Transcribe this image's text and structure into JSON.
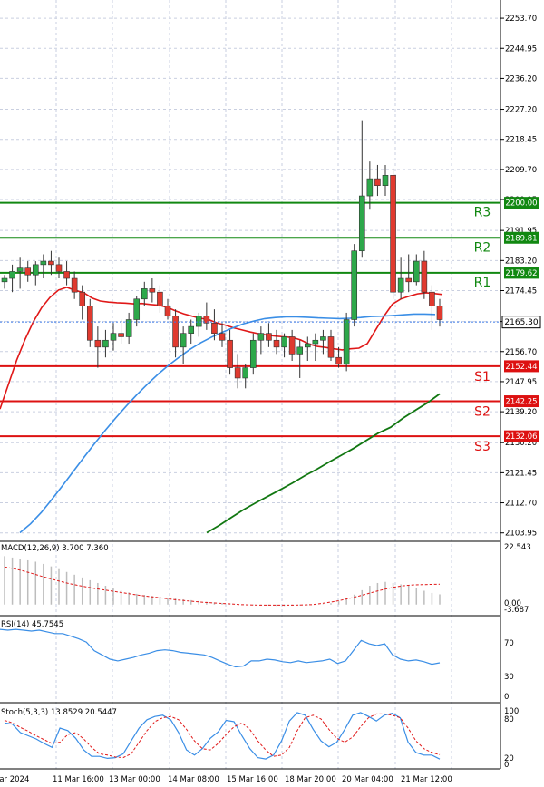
{
  "chart_data": [
    {
      "type": "candlestick",
      "ylim": [
        2101.5,
        2259.0
      ],
      "price_axis_ticks": [
        "2253.70",
        "2244.95",
        "2236.20",
        "2227.20",
        "2218.45",
        "2209.70",
        "2200.95",
        "2191.95",
        "2183.20",
        "2174.45",
        "2165.45",
        "2156.70",
        "2147.95",
        "2139.20",
        "2130.20",
        "2121.45",
        "2112.70",
        "2103.95"
      ],
      "x_labels": [
        "Mar 2024",
        "11 Mar 16:00",
        "13 Mar 00:00",
        "14 Mar 08:00",
        "15 Mar 16:00",
        "18 Mar 20:00",
        "20 Mar 04:00",
        "21 Mar 12:00"
      ],
      "current_price": "2165.30",
      "levels": [
        {
          "name": "R3",
          "value": 2200.0,
          "label": "2200.00",
          "color": "#118811"
        },
        {
          "name": "R2",
          "value": 2189.81,
          "label": "2189.81",
          "color": "#118811"
        },
        {
          "name": "R1",
          "value": 2179.62,
          "label": "2179.62",
          "color": "#118811"
        },
        {
          "name": "S1",
          "value": 2152.44,
          "label": "2152.44",
          "color": "#dd1111"
        },
        {
          "name": "S2",
          "value": 2142.25,
          "label": "2142.25",
          "color": "#dd1111"
        },
        {
          "name": "S3",
          "value": 2132.06,
          "label": "2132.06",
          "color": "#dd1111"
        }
      ],
      "candles": [
        [
          2177,
          2179,
          2175,
          2178
        ],
        [
          2178,
          2182,
          2174,
          2180
        ],
        [
          2180,
          2184,
          2175,
          2181
        ],
        [
          2181,
          2183,
          2177,
          2179
        ],
        [
          2179,
          2183,
          2176,
          2182
        ],
        [
          2182,
          2185,
          2178,
          2183
        ],
        [
          2183,
          2186,
          2179,
          2182
        ],
        [
          2182,
          2184,
          2178,
          2180
        ],
        [
          2180,
          2183,
          2176,
          2178
        ],
        [
          2178,
          2180,
          2172,
          2174
        ],
        [
          2174,
          2176,
          2166,
          2170
        ],
        [
          2170,
          2172,
          2158,
          2160
        ],
        [
          2160,
          2164,
          2152,
          2158
        ],
        [
          2158,
          2163,
          2155,
          2160
        ],
        [
          2160,
          2165,
          2157,
          2162
        ],
        [
          2162,
          2166,
          2159,
          2161
        ],
        [
          2161,
          2168,
          2159,
          2166
        ],
        [
          2166,
          2173,
          2164,
          2172
        ],
        [
          2172,
          2177,
          2170,
          2175
        ],
        [
          2175,
          2178,
          2171,
          2174
        ],
        [
          2174,
          2176,
          2168,
          2170
        ],
        [
          2170,
          2172,
          2166,
          2167
        ],
        [
          2167,
          2169,
          2155,
          2158
        ],
        [
          2158,
          2164,
          2153,
          2162
        ],
        [
          2162,
          2166,
          2159,
          2164
        ],
        [
          2164,
          2168,
          2161,
          2167
        ],
        [
          2167,
          2171,
          2163,
          2165
        ],
        [
          2165,
          2169,
          2160,
          2162
        ],
        [
          2162,
          2165,
          2158,
          2160
        ],
        [
          2160,
          2163,
          2150,
          2152
        ],
        [
          2152,
          2156,
          2146,
          2149
        ],
        [
          2149,
          2153,
          2146,
          2152
        ],
        [
          2152,
          2162,
          2150,
          2160
        ],
        [
          2160,
          2164,
          2156,
          2162
        ],
        [
          2162,
          2165,
          2158,
          2160
        ],
        [
          2160,
          2163,
          2156,
          2158
        ],
        [
          2158,
          2162,
          2155,
          2161
        ],
        [
          2161,
          2163,
          2154,
          2156
        ],
        [
          2156,
          2160,
          2149,
          2158
        ],
        [
          2158,
          2161,
          2154,
          2159
        ],
        [
          2159,
          2162,
          2154,
          2160
        ],
        [
          2160,
          2163,
          2156,
          2161
        ],
        [
          2161,
          2163,
          2154,
          2155
        ],
        [
          2155,
          2158,
          2152,
          2153
        ],
        [
          2153,
          2168,
          2151,
          2166
        ],
        [
          2166,
          2188,
          2164,
          2186
        ],
        [
          2186,
          2224,
          2184,
          2202
        ],
        [
          2202,
          2212,
          2198,
          2207
        ],
        [
          2207,
          2211,
          2202,
          2205
        ],
        [
          2205,
          2211,
          2202,
          2208
        ],
        [
          2208,
          2210,
          2172,
          2174
        ],
        [
          2174,
          2184,
          2172,
          2178
        ],
        [
          2178,
          2185,
          2174,
          2177
        ],
        [
          2177,
          2185,
          2176,
          2183
        ],
        [
          2183,
          2186,
          2172,
          2174
        ],
        [
          2174,
          2176,
          2163,
          2170
        ],
        [
          2170,
          2172,
          2164,
          2166
        ]
      ],
      "ma_red": [
        2140.0,
        2147.1,
        2154.2,
        2160.2,
        2165.4,
        2169.5,
        2172.5,
        2174.6,
        2175.4,
        2174.5,
        2173.9,
        2172.3,
        2171.4,
        2171.1,
        2170.9,
        2170.8,
        2170.6,
        2170.7,
        2170.4,
        2170.2,
        2169.6,
        2168.6,
        2167.7,
        2167.0,
        2166.4,
        2166.0,
        2165.0,
        2164.4,
        2163.6,
        2163.0,
        2162.4,
        2161.9,
        2161.5,
        2161.2,
        2161.0,
        2160.8,
        2160.1,
        2158.9,
        2158.2,
        2157.9,
        2157.5,
        2157.2,
        2157.5,
        2157.7,
        2159.0,
        2163.0,
        2167.0,
        2170.5,
        2172.0,
        2172.8,
        2173.5,
        2173.8,
        2173.6,
        2173.3
      ],
      "ma_blue": [
        2104.0,
        2106.6,
        2109.9,
        2113.7,
        2117.7,
        2121.8,
        2125.9,
        2129.9,
        2133.7,
        2137.4,
        2140.9,
        2144.2,
        2147.3,
        2150.2,
        2152.8,
        2155.2,
        2157.4,
        2159.3,
        2160.9,
        2162.3,
        2163.6,
        2164.8,
        2165.6,
        2166.3,
        2166.6,
        2166.8,
        2166.8,
        2166.7,
        2166.5,
        2166.4,
        2166.3,
        2166.4,
        2166.6,
        2166.9,
        2167.0,
        2167.2,
        2167.4,
        2167.6,
        2167.6,
        2167.5
      ],
      "ma_green": [
        2104.0,
        2106.1,
        2108.4,
        2110.7,
        2112.7,
        2114.6,
        2116.5,
        2118.5,
        2120.6,
        2122.5,
        2124.6,
        2126.6,
        2128.6,
        2130.8,
        2133.0,
        2134.7,
        2137.3,
        2139.6,
        2141.8,
        2144.4
      ],
      "macd": {
        "label": "MACD(12,26,9) 3.700 7.360",
        "ticks": [
          "22.543",
          "0.00",
          "-3.687"
        ],
        "ylim": [
          -3.687,
          22.543
        ],
        "hist": [
          17.5,
          17.0,
          16.5,
          16.0,
          15.5,
          14.7,
          13.8,
          12.8,
          11.8,
          10.8,
          9.8,
          8.8,
          7.8,
          6.8,
          5.8,
          5.0,
          4.4,
          3.9,
          3.5,
          3.1,
          2.8,
          2.5,
          2.2,
          1.9,
          1.6,
          1.3,
          1.0,
          0.8,
          0.6,
          0.4,
          0.2,
          0.0,
          -0.2,
          -0.3,
          -0.4,
          -0.5,
          -0.5,
          -0.4,
          -0.3,
          -0.2,
          -0.1,
          0.1,
          0.5,
          1.2,
          2.2,
          3.6,
          5.2,
          6.8,
          7.8,
          8.2,
          7.8,
          7.3,
          6.8,
          6.0,
          5.0,
          4.2,
          3.7
        ],
        "signal": [
          13.6,
          13.0,
          12.2,
          11.3,
          10.3,
          9.4,
          8.5,
          7.7,
          7.0,
          6.4,
          5.8,
          5.3,
          4.8,
          4.3,
          3.8,
          3.3,
          2.9,
          2.5,
          2.1,
          1.7,
          1.4,
          1.1,
          0.8,
          0.6,
          0.4,
          0.2,
          0.0,
          -0.1,
          -0.2,
          -0.2,
          -0.2,
          -0.2,
          -0.2,
          -0.1,
          0.0,
          0.4,
          0.9,
          1.5,
          2.2,
          3.0,
          3.9,
          4.8,
          5.6,
          6.3,
          6.8,
          7.1,
          7.2,
          7.3,
          7.36
        ]
      },
      "rsi": {
        "label": "RSI(14) 45.7545",
        "ticks": [
          "70",
          "30",
          "0"
        ],
        "ylim": [
          0,
          100
        ],
        "values": [
          85,
          84,
          85,
          84,
          83,
          84,
          82,
          80,
          80,
          77,
          74,
          70,
          60,
          55,
          50,
          48,
          50,
          52,
          55,
          57,
          60,
          61,
          60,
          58,
          57,
          56,
          55,
          52,
          48,
          44,
          41,
          42,
          48,
          48,
          50,
          49,
          47,
          46,
          48,
          46,
          47,
          48,
          50,
          45,
          48,
          60,
          72,
          68,
          66,
          68,
          55,
          50,
          48,
          49,
          47,
          44,
          45.75
        ]
      },
      "stoch": {
        "label": "Stoch(5,3,3) 13.8529 20.5447",
        "ticks": [
          "100",
          "80",
          "20",
          "0"
        ],
        "ylim": [
          0,
          100
        ],
        "k": [
          70,
          68,
          55,
          50,
          45,
          38,
          32,
          62,
          58,
          46,
          28,
          18,
          18,
          15,
          16,
          22,
          42,
          62,
          75,
          80,
          82,
          75,
          55,
          28,
          20,
          30,
          46,
          56,
          74,
          72,
          50,
          30,
          16,
          14,
          20,
          42,
          73,
          86,
          82,
          60,
          42,
          33,
          40,
          60,
          82,
          86,
          80,
          73,
          82,
          85,
          78,
          40,
          24,
          20,
          20,
          13.85
        ],
        "d": [
          74,
          70,
          63,
          57,
          50,
          44,
          38,
          40,
          52,
          55,
          45,
          32,
          22,
          20,
          17,
          16,
          22,
          40,
          58,
          72,
          78,
          80,
          75,
          60,
          42,
          30,
          28,
          38,
          52,
          64,
          70,
          60,
          42,
          28,
          18,
          20,
          32,
          58,
          78,
          82,
          76,
          60,
          46,
          40,
          48,
          64,
          78,
          84,
          84,
          82,
          78,
          62,
          42,
          30,
          24,
          20.54
        ]
      }
    }
  ]
}
